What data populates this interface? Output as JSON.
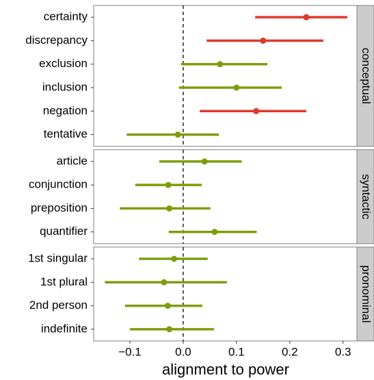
{
  "chart_data": {
    "type": "pointrange",
    "xlabel": "alignment to power",
    "xlim": [
      -0.168,
      0.326
    ],
    "xticks": [
      {
        "value": -0.1,
        "label": "−0.1"
      },
      {
        "value": 0,
        "label": "0.0"
      },
      0.1,
      0.2,
      0.3
    ],
    "vline": 0,
    "facets": [
      {
        "name": "conceptual",
        "categories": [
          "certainty",
          "discrepancy",
          "exclusion",
          "inclusion",
          "negation",
          "tentative"
        ],
        "values": [
          0.231,
          0.15,
          0.069,
          0.1,
          0.137,
          -0.01
        ],
        "lower": [
          0.135,
          0.044,
          -0.004,
          -0.008,
          0.031,
          -0.106
        ],
        "upper": [
          0.308,
          0.263,
          0.158,
          0.185,
          0.231,
          0.067
        ],
        "colors": [
          "#e0382e",
          "#e0382e",
          "#7f9c0b",
          "#7f9c0b",
          "#e0382e",
          "#7f9c0b"
        ]
      },
      {
        "name": "syntactic",
        "categories": [
          "article",
          "conjunction",
          "preposition",
          "quantifier"
        ],
        "values": [
          0.04,
          -0.028,
          -0.026,
          0.059
        ],
        "lower": [
          -0.045,
          -0.09,
          -0.119,
          -0.027
        ],
        "upper": [
          0.11,
          0.035,
          0.051,
          0.138
        ],
        "colors": [
          "#7f9c0b",
          "#7f9c0b",
          "#7f9c0b",
          "#7f9c0b"
        ]
      },
      {
        "name": "pronominal",
        "categories": [
          "1st singular",
          "1st plural",
          "2nd person",
          "indefinite"
        ],
        "values": [
          -0.017,
          -0.036,
          -0.029,
          -0.026
        ],
        "lower": [
          -0.083,
          -0.147,
          -0.109,
          -0.1
        ],
        "upper": [
          0.046,
          0.082,
          0.036,
          0.058
        ],
        "colors": [
          "#7f9c0b",
          "#7f9c0b",
          "#7f9c0b",
          "#7f9c0b"
        ]
      }
    ]
  }
}
